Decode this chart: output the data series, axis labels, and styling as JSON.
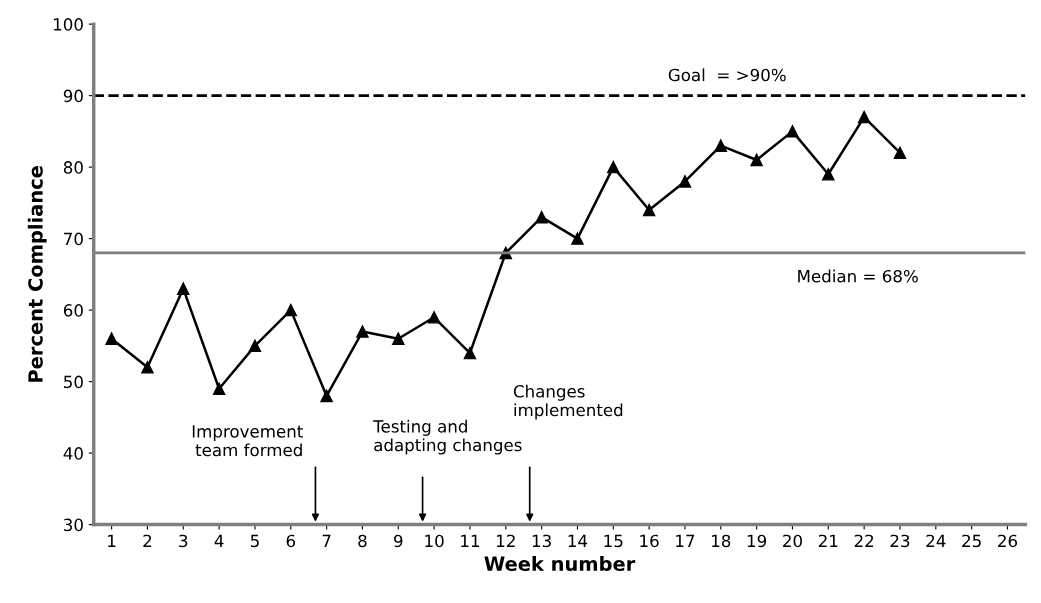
{
  "chart_data": {
    "type": "line",
    "xlabel": "Week number",
    "ylabel": "Percent Compliance",
    "categories": [
      "1",
      "2",
      "3",
      "4",
      "5",
      "6",
      "7",
      "8",
      "9",
      "10",
      "11",
      "12",
      "13",
      "14",
      "15",
      "16",
      "17",
      "18",
      "19",
      "20",
      "21",
      "22",
      "23",
      "24",
      "25",
      "26"
    ],
    "series": [
      {
        "color": "#000000",
        "values": [
          56,
          52,
          63,
          49,
          55,
          60,
          48,
          57,
          56,
          59,
          54,
          68,
          73,
          70,
          80,
          74,
          78,
          83,
          81,
          85,
          79,
          87,
          82,
          null,
          null,
          null
        ]
      }
    ],
    "marker": "triangle",
    "line_style": "solid",
    "ylim": [
      30,
      100
    ],
    "yticks": [
      30,
      40,
      50,
      60,
      70,
      80,
      90,
      100
    ],
    "grid": false,
    "legend": false,
    "ref_lines": [
      {
        "axis": "y",
        "value": 90,
        "label": "Goal  = >90%",
        "color": "#000000",
        "line_style": "dashed"
      },
      {
        "axis": "y",
        "value": 68,
        "label": "Median = 68%",
        "color": "#7f7f7f",
        "line_style": "solid"
      }
    ],
    "annotations": [
      "Improvement\nteam formed",
      "Testing and\nadapting changes",
      "Changes\nimplemented"
    ]
  }
}
